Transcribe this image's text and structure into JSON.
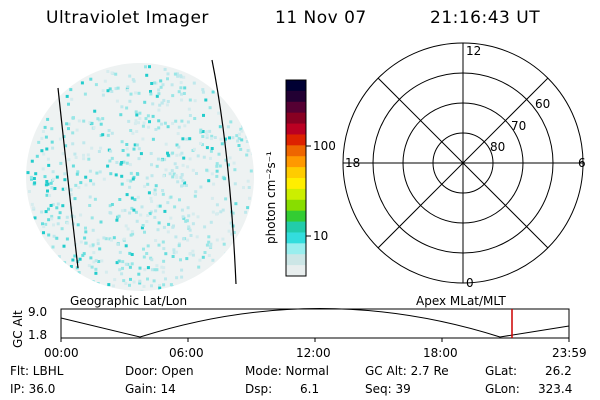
{
  "header": {
    "instrument": "Ultraviolet Imager",
    "date": "11 Nov 07",
    "time": "21:16:43 UT"
  },
  "colorbar": {
    "unit_label": "photon cm⁻²s⁻¹",
    "ticks": [
      "100",
      "10"
    ],
    "colors": [
      "#000033",
      "#220033",
      "#550033",
      "#880022",
      "#bb0022",
      "#dd2200",
      "#ee6600",
      "#ff9900",
      "#ffcc00",
      "#ffee00",
      "#ccee00",
      "#88dd00",
      "#33cc33",
      "#22ccaa",
      "#33dddd",
      "#99eeee",
      "#cce6e6",
      "#e8eeee"
    ]
  },
  "polar_plot": {
    "mlt_labels": {
      "top": "12",
      "right": "6",
      "bottom": "0",
      "left": "18"
    },
    "lat_labels": [
      "60",
      "70",
      "80"
    ]
  },
  "timeline": {
    "left_title": "Geographic Lat/Lon",
    "right_title": "Apex MLat/MLT",
    "y_axis_label": "GC Alt",
    "y_ticks": [
      "9.0",
      "1.8"
    ],
    "x_ticks": [
      "00:00",
      "06:00",
      "12:00",
      "18:00",
      "23:59"
    ],
    "marker_color": "#cc0000"
  },
  "info": {
    "row1": {
      "filter": "Flt: LBHL",
      "door": "Door: Open",
      "mode": "Mode: Normal",
      "gc_alt": "GC Alt: 2.7 Re",
      "glat_label": "GLat:",
      "glat_value": "26.2"
    },
    "row2": {
      "ip": "IP: 36.0",
      "gain": "Gain: 14",
      "dsp_label": "Dsp:",
      "dsp_value": "6.1",
      "seq": "Seq: 39",
      "glon_label": "GLon:",
      "glon_value": "323.4"
    }
  }
}
